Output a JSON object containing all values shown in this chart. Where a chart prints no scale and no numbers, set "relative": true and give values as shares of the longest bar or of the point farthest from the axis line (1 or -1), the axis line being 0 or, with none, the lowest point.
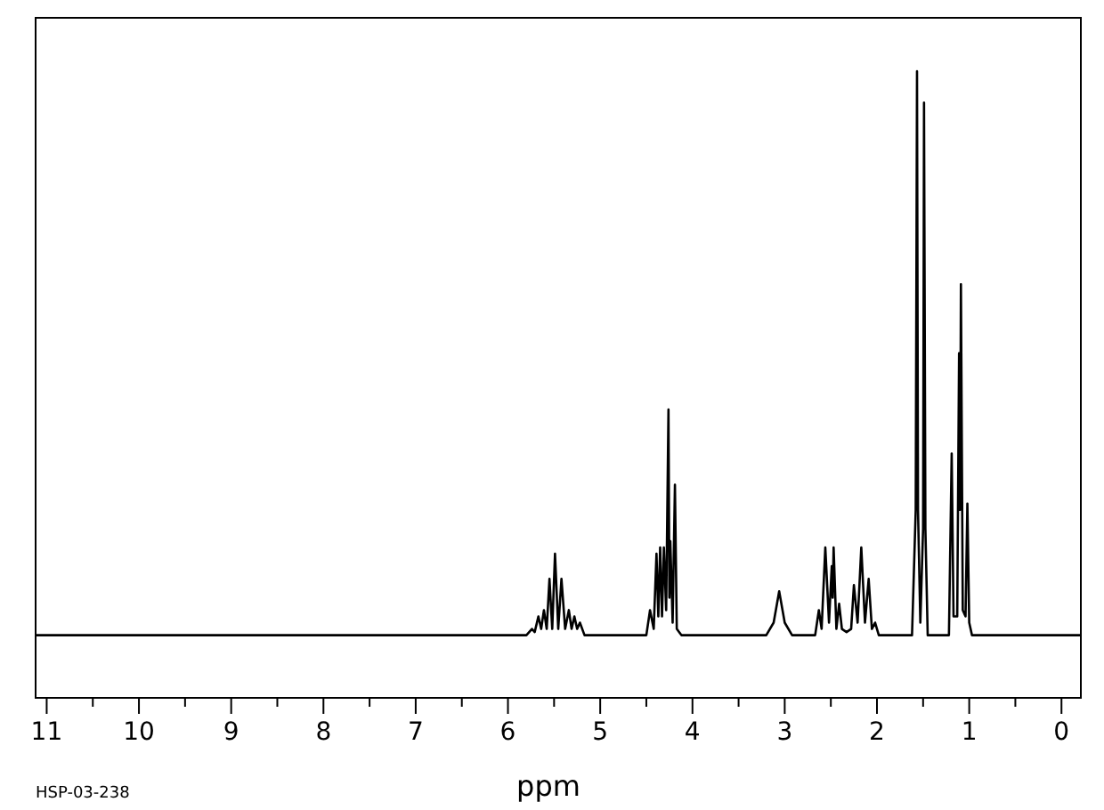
{
  "chart_data": {
    "type": "line",
    "relative": true,
    "xlabel": "ppm",
    "annotations": [
      "HSP-03-238"
    ],
    "xlim": [
      11.12,
      -0.21
    ],
    "xticks": [
      11,
      {
        "value": 10.5,
        "label": null
      },
      10,
      {
        "value": 9.5,
        "label": null
      },
      9,
      {
        "value": 8.5,
        "label": null
      },
      8,
      {
        "value": 7.5,
        "label": null
      },
      7,
      {
        "value": 6.5,
        "label": null
      },
      6,
      {
        "value": 5.5,
        "label": null
      },
      5,
      {
        "value": 4.5,
        "label": null
      },
      4,
      {
        "value": 3.5,
        "label": null
      },
      3,
      {
        "value": 2.5,
        "label": null
      },
      2,
      {
        "value": 1.5,
        "label": null
      },
      1,
      {
        "value": 0.5,
        "label": null
      },
      0
    ],
    "series": [
      {
        "color": "#000000",
        "x": [
          11.12,
          5.8,
          5.74,
          5.71,
          5.67,
          5.64,
          5.61,
          5.58,
          5.55,
          5.52,
          5.49,
          5.455,
          5.42,
          5.38,
          5.34,
          5.31,
          5.28,
          5.25,
          5.22,
          5.17,
          4.5,
          4.46,
          4.42,
          4.39,
          4.37,
          4.35,
          4.33,
          4.31,
          4.285,
          4.26,
          4.25,
          4.24,
          4.215,
          4.19,
          4.17,
          4.12,
          3.2,
          3.12,
          3.06,
          3.0,
          2.92,
          2.67,
          2.63,
          2.6,
          2.56,
          2.52,
          2.49,
          2.48,
          2.47,
          2.44,
          2.41,
          2.38,
          2.33,
          2.28,
          2.25,
          2.21,
          2.17,
          2.13,
          2.09,
          2.055,
          2.02,
          1.98,
          1.62,
          1.58,
          1.566,
          1.555,
          1.53,
          1.5,
          1.49,
          1.475,
          1.45,
          1.22,
          1.19,
          1.17,
          1.13,
          1.11,
          1.1,
          1.09,
          1.07,
          1.04,
          1.02,
          1.0,
          0.97,
          -0.21
        ],
        "values": [
          0.1,
          0.1,
          0.11,
          0.105,
          0.13,
          0.11,
          0.14,
          0.11,
          0.19,
          0.11,
          0.23,
          0.11,
          0.19,
          0.11,
          0.14,
          0.11,
          0.13,
          0.11,
          0.12,
          0.1,
          0.1,
          0.14,
          0.11,
          0.23,
          0.13,
          0.24,
          0.13,
          0.24,
          0.14,
          0.46,
          0.16,
          0.25,
          0.12,
          0.34,
          0.11,
          0.1,
          0.1,
          0.12,
          0.17,
          0.12,
          0.1,
          0.1,
          0.14,
          0.11,
          0.24,
          0.12,
          0.21,
          0.16,
          0.24,
          0.11,
          0.15,
          0.11,
          0.105,
          0.11,
          0.18,
          0.12,
          0.24,
          0.12,
          0.19,
          0.11,
          0.12,
          0.1,
          0.1,
          0.3,
          1.0,
          0.3,
          0.12,
          0.27,
          0.95,
          0.27,
          0.1,
          0.1,
          0.39,
          0.13,
          0.13,
          0.55,
          0.3,
          0.66,
          0.14,
          0.13,
          0.31,
          0.12,
          0.1,
          0.1
        ]
      }
    ]
  }
}
